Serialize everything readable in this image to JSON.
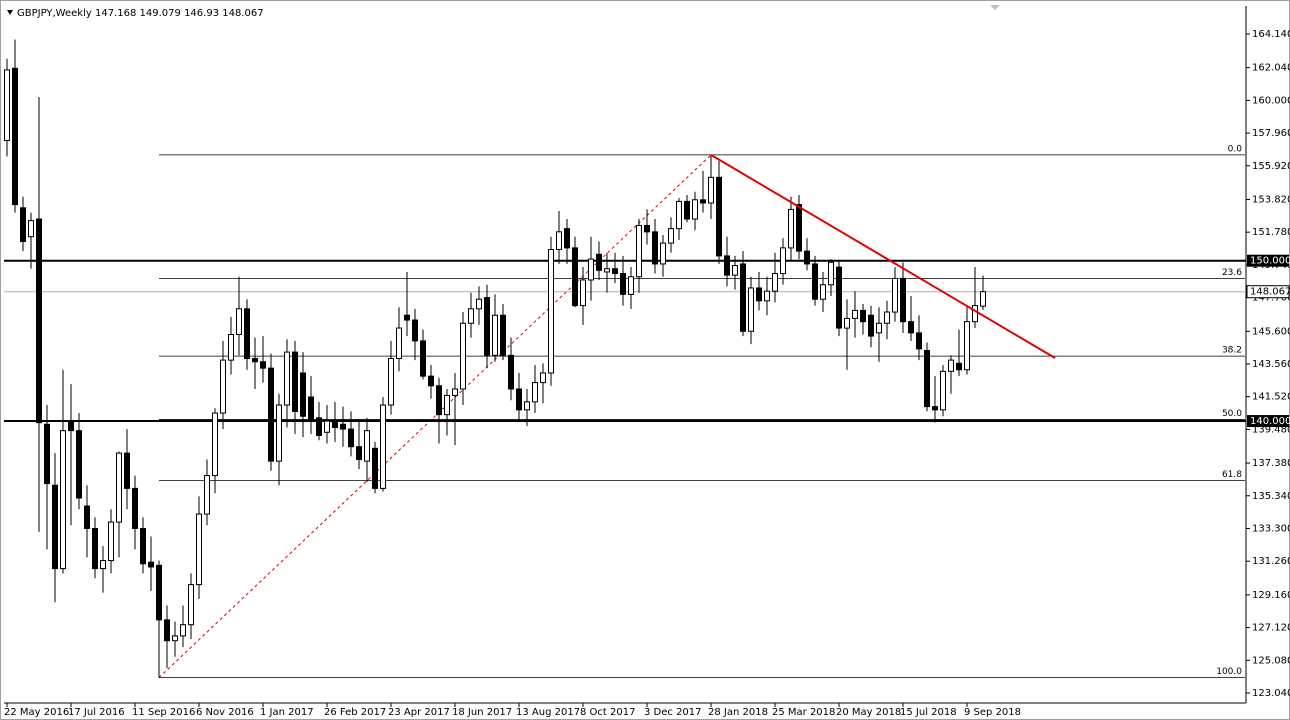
{
  "chart_data": {
    "type": "candlestick",
    "title": "GBPJPY,Weekly",
    "categories": [
      "22 May 2016",
      null,
      null,
      null,
      null,
      null,
      null,
      null,
      "17 Jul 2016",
      null,
      null,
      null,
      null,
      null,
      null,
      null,
      "11 Sep 2016",
      null,
      null,
      null,
      null,
      null,
      null,
      null,
      "6 Nov 2016",
      null,
      null,
      null,
      null,
      null,
      null,
      null,
      "1 Jan 2017",
      null,
      null,
      null,
      null,
      null,
      null,
      null,
      "26 Feb 2017",
      null,
      null,
      null,
      null,
      null,
      null,
      null,
      "23 Apr 2017",
      null,
      null,
      null,
      null,
      null,
      null,
      null,
      "18 Jun 2017",
      null,
      null,
      null,
      null,
      null,
      null,
      null,
      "13 Aug 2017",
      null,
      null,
      null,
      null,
      null,
      null,
      null,
      "8 Oct 2017",
      null,
      null,
      null,
      null,
      null,
      null,
      null,
      "3 Dec 2017",
      null,
      null,
      null,
      null,
      null,
      null,
      null,
      "28 Jan 2018",
      null,
      null,
      null,
      null,
      null,
      null,
      null,
      "25 Mar 2018",
      null,
      null,
      null,
      null,
      null,
      null,
      null,
      "20 May 2018",
      null,
      null,
      null,
      null,
      null,
      null,
      null,
      "15 Jul 2018",
      null,
      null,
      null,
      null,
      null,
      null,
      null,
      "9 Sep 2018",
      null,
      null
    ],
    "open": [
      157.5,
      162.0,
      153.3,
      151.5,
      152.6,
      139.8,
      136.0,
      130.8,
      140.0,
      139.4,
      134.7,
      133.3,
      130.8,
      131.3,
      133.7,
      138.0,
      135.8,
      133.3,
      131.2,
      131.0,
      127.6,
      126.3,
      126.6,
      127.3,
      129.8,
      134.2,
      136.6,
      140.5,
      143.8,
      145.4,
      147.0,
      143.9,
      143.7,
      143.3,
      137.5,
      141.0,
      144.3,
      143.0,
      141.5,
      140.2,
      139.3,
      140.0,
      139.8,
      139.5,
      138.4,
      137.5,
      138.3,
      135.8,
      141.0,
      143.9,
      146.6,
      146.3,
      145.0,
      142.8,
      142.2,
      140.4,
      141.6,
      142.0,
      146.1,
      147.0,
      147.7,
      144.1,
      146.6,
      144.1,
      142.0,
      140.7,
      141.2,
      142.4,
      143.0,
      150.7,
      152.0,
      150.8,
      147.2,
      148.8,
      150.4,
      149.3,
      149.5,
      149.2,
      147.9,
      149.0,
      152.2,
      151.8,
      149.8,
      151.1,
      152.0,
      153.7,
      152.6,
      153.8,
      153.6,
      155.2,
      150.3,
      149.1,
      149.8,
      145.6,
      148.3,
      147.5,
      148.1,
      149.2,
      150.8,
      153.5,
      150.6,
      149.8,
      147.6,
      148.5,
      149.6,
      145.8,
      146.4,
      146.9,
      146.6,
      145.5,
      146.1,
      146.8,
      148.9,
      146.2,
      145.5,
      144.4,
      140.9,
      140.7,
      143.1,
      143.6,
      143.2,
      146.2,
      147.168
    ],
    "high": [
      162.6,
      163.8,
      154.0,
      153.0,
      160.2,
      141.0,
      138.0,
      143.2,
      142.3,
      140.5,
      136.0,
      134.0,
      132.2,
      134.5,
      138.1,
      139.5,
      136.6,
      134.0,
      132.8,
      131.3,
      128.5,
      127.5,
      128.5,
      130.5,
      135.3,
      137.6,
      140.8,
      145.0,
      146.5,
      149.0,
      147.6,
      145.2,
      145.3,
      144.2,
      141.7,
      145.1,
      145.0,
      144.3,
      142.8,
      141.2,
      141.0,
      141.2,
      140.9,
      140.6,
      140.1,
      140.2,
      138.7,
      141.5,
      145.0,
      147.1,
      149.3,
      147.0,
      145.7,
      143.5,
      142.7,
      142.0,
      143.0,
      146.8,
      148.0,
      148.4,
      148.5,
      147.9,
      147.3,
      145.2,
      143.0,
      142.0,
      143.5,
      143.6,
      151.5,
      153.1,
      152.6,
      151.5,
      149.6,
      151.5,
      151.2,
      150.5,
      150.5,
      150.3,
      149.6,
      152.6,
      153.2,
      152.6,
      151.6,
      152.7,
      153.9,
      154.1,
      154.3,
      155.6,
      156.6,
      156.2,
      151.5,
      150.3,
      150.6,
      149.0,
      149.3,
      149.0,
      150.5,
      151.4,
      154.0,
      154.1,
      151.4,
      150.3,
      149.3,
      150.1,
      150.0,
      147.6,
      148.1,
      147.3,
      147.2,
      147.1,
      147.5,
      149.6,
      149.9,
      147.8,
      146.6,
      144.9,
      142.8,
      143.5,
      144.1,
      145.7,
      147.2,
      149.6,
      149.079
    ],
    "low": [
      156.5,
      153.0,
      150.6,
      149.5,
      133.1,
      132.0,
      128.7,
      130.5,
      133.5,
      134.5,
      131.5,
      130.2,
      129.3,
      130.5,
      131.5,
      134.5,
      132.0,
      130.5,
      129.4,
      124.0,
      124.6,
      125.3,
      125.9,
      126.4,
      128.9,
      133.5,
      135.5,
      139.5,
      142.9,
      144.1,
      143.2,
      142.0,
      142.4,
      136.9,
      136.0,
      139.6,
      139.2,
      139.0,
      139.2,
      138.8,
      138.6,
      138.7,
      138.4,
      137.8,
      137.0,
      136.2,
      135.5,
      135.6,
      140.4,
      143.1,
      145.3,
      143.8,
      142.6,
      141.4,
      138.6,
      139.1,
      138.5,
      141.0,
      145.2,
      146.0,
      143.3,
      143.7,
      143.8,
      141.3,
      140.0,
      139.7,
      140.5,
      141.1,
      142.2,
      149.8,
      149.8,
      147.1,
      146.0,
      147.5,
      148.8,
      148.0,
      148.6,
      147.2,
      147.0,
      148.0,
      151.0,
      149.2,
      149.0,
      150.5,
      151.3,
      152.4,
      151.9,
      153.0,
      152.6,
      149.8,
      148.4,
      148.2,
      145.3,
      144.8,
      146.9,
      146.6,
      147.4,
      148.5,
      150.0,
      150.1,
      149.4,
      147.2,
      146.8,
      147.8,
      145.3,
      143.2,
      145.2,
      145.4,
      144.6,
      143.7,
      145.1,
      146.2,
      145.5,
      145.0,
      143.8,
      140.6,
      139.9,
      140.3,
      141.7,
      142.8,
      142.9,
      145.8,
      146.93
    ],
    "close": [
      161.9,
      153.5,
      151.2,
      152.5,
      139.9,
      136.1,
      130.8,
      139.4,
      139.4,
      135.2,
      133.3,
      130.8,
      131.3,
      133.7,
      138.0,
      135.8,
      133.3,
      131.1,
      130.9,
      127.6,
      126.3,
      126.6,
      127.3,
      129.8,
      134.2,
      136.6,
      140.5,
      143.8,
      145.4,
      147.0,
      143.9,
      143.7,
      143.3,
      137.5,
      141.0,
      144.3,
      140.6,
      140.3,
      140.0,
      139.1,
      140.0,
      139.6,
      139.5,
      138.4,
      137.6,
      139.4,
      135.8,
      141.0,
      143.9,
      145.8,
      146.3,
      145.0,
      142.8,
      142.2,
      140.4,
      141.6,
      142.0,
      146.1,
      147.0,
      147.6,
      144.1,
      146.6,
      144.1,
      142.0,
      140.7,
      141.2,
      142.4,
      143.0,
      150.7,
      151.8,
      150.8,
      147.2,
      148.8,
      150.1,
      149.4,
      149.5,
      149.2,
      147.9,
      149.0,
      152.2,
      151.8,
      149.8,
      151.1,
      152.0,
      153.7,
      152.6,
      153.8,
      153.6,
      155.2,
      150.3,
      149.1,
      149.7,
      145.6,
      148.3,
      147.5,
      148.1,
      149.2,
      150.8,
      153.2,
      150.6,
      149.8,
      147.6,
      148.5,
      149.9,
      145.8,
      146.4,
      146.9,
      146.2,
      145.3,
      146.1,
      146.8,
      148.9,
      146.2,
      145.5,
      144.5,
      140.9,
      140.7,
      143.1,
      143.8,
      143.2,
      146.2,
      147.2,
      148.067
    ],
    "up_color": "#ffffff",
    "down_color": "#000000",
    "ylim": [
      122.416,
      165.886
    ],
    "yticks": [
      {
        "value": 164.14,
        "label": "164.140"
      },
      {
        "value": 162.04,
        "label": "162.040"
      },
      {
        "value": 160.0,
        "label": "160.000"
      },
      {
        "value": 157.96,
        "label": "157.960"
      },
      {
        "value": 155.92,
        "label": "155.920"
      },
      {
        "value": 153.82,
        "label": "153.820"
      },
      {
        "value": 151.78,
        "label": "151.780"
      },
      {
        "value": 149.74,
        "label": "149.740"
      },
      {
        "value": 147.7,
        "label": "147.700"
      },
      {
        "value": 145.6,
        "label": "145.600"
      },
      {
        "value": 143.56,
        "label": "143.560"
      },
      {
        "value": 141.52,
        "label": "141.520"
      },
      {
        "value": 139.48,
        "label": "139.480"
      },
      {
        "value": 137.38,
        "label": "137.380"
      },
      {
        "value": 135.34,
        "label": "135.340"
      },
      {
        "value": 133.3,
        "label": "133.300"
      },
      {
        "value": 131.26,
        "label": "131.260"
      },
      {
        "value": 129.16,
        "label": "129.160"
      },
      {
        "value": 127.12,
        "label": "127.120"
      },
      {
        "value": 125.08,
        "label": "125.080"
      },
      {
        "value": 123.04,
        "label": "123.040"
      }
    ],
    "levels": [
      {
        "value": 150.0,
        "label": "150.000"
      },
      {
        "value": 140.0,
        "label": "140.000"
      }
    ],
    "fibonacci": [
      {
        "label": "0.0",
        "price": 156.6
      },
      {
        "label": "23.6",
        "price": 148.9
      },
      {
        "label": "38.2",
        "price": 144.05
      },
      {
        "label": "50.0",
        "price": 140.1
      },
      {
        "label": "61.8",
        "price": 136.3
      },
      {
        "label": "100.0",
        "price": 124.0
      }
    ],
    "fib_color": "#e00000",
    "trendline": {
      "color": "#e00000",
      "start": {
        "index": 88,
        "price": 156.6
      },
      "end": {
        "index": 131,
        "price": 143.93
      }
    }
  }
}
